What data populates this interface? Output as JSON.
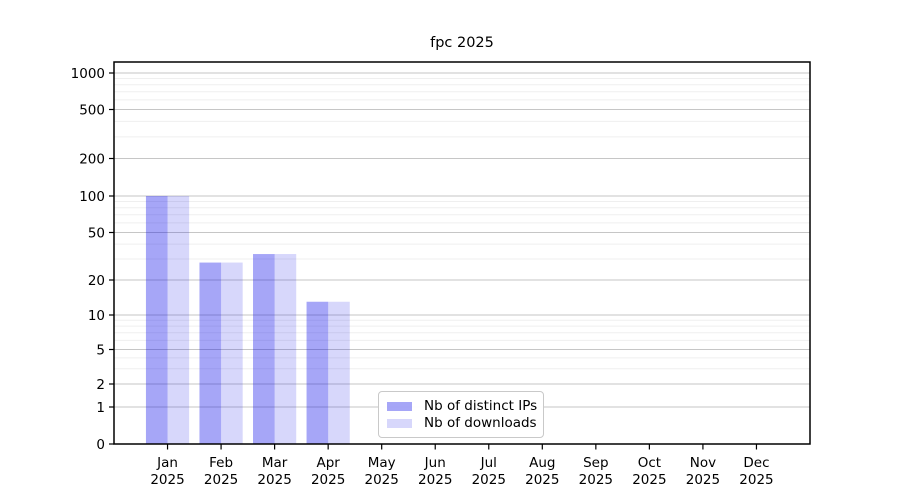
{
  "chart_data": {
    "type": "bar",
    "title": "fpc 2025",
    "categories": [
      "Jan 2025",
      "Feb 2025",
      "Mar 2025",
      "Apr 2025",
      "May 2025",
      "Jun 2025",
      "Jul 2025",
      "Aug 2025",
      "Sep 2025",
      "Oct 2025",
      "Nov 2025",
      "Dec 2025"
    ],
    "category_months": [
      "Jan",
      "Feb",
      "Mar",
      "Apr",
      "May",
      "Jun",
      "Jul",
      "Aug",
      "Sep",
      "Oct",
      "Nov",
      "Dec"
    ],
    "category_year": "2025",
    "series": [
      {
        "name": "Nb of distinct IPs",
        "color": "rgba(8,8,232,0.36)",
        "solid_color": "#a6a6f7",
        "values": [
          100,
          28,
          33,
          13,
          0,
          0,
          0,
          0,
          0,
          0,
          0,
          0
        ]
      },
      {
        "name": "Nb of downloads",
        "color": "rgba(8,8,232,0.16)",
        "solid_color": "#d8d8fb",
        "values": [
          100,
          28,
          33,
          13,
          0,
          0,
          0,
          0,
          0,
          0,
          0,
          0
        ]
      }
    ],
    "xlabel": "",
    "ylabel": "",
    "yscale": "symlog",
    "yticks": [
      0,
      1,
      2,
      5,
      10,
      20,
      50,
      100,
      200,
      500,
      1000
    ],
    "ylim": [
      0,
      1230
    ],
    "grid": {
      "major": true,
      "minor": true
    },
    "legend_position": "lower center",
    "colors": {
      "background": "#ffffff",
      "axis": "#000000",
      "grid_major": "#c6c6c6",
      "grid_minor": "#efefef",
      "tick_text": "#000000"
    }
  }
}
